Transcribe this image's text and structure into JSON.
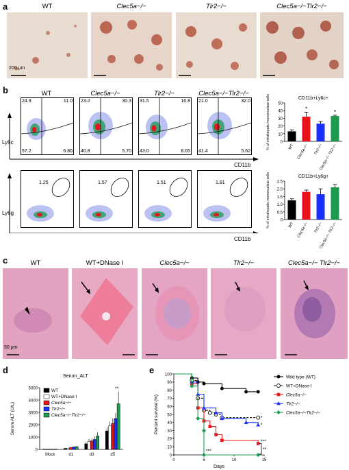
{
  "panels": {
    "a": {
      "label": "a",
      "titles": [
        "WT",
        "Clec5a−/−",
        "Tlr2−/−",
        "Clec5a−/−Tlr2−/−"
      ],
      "scale_bar": "200 μm"
    },
    "b": {
      "label": "b",
      "titles": [
        "WT",
        "Clec5a−/−",
        "Tlr2−/−",
        "Clec5a−/−Tlr2−/−"
      ],
      "row1_ylabel": "Ly6c",
      "row2_ylabel": "Ly6g",
      "xlabel": "CD11b",
      "row1_quadrants": [
        {
          "ul": "24.9",
          "ur": "11.0",
          "ll": "57.2",
          "lr": "6.86"
        },
        {
          "ul": "23.2",
          "ur": "30.3",
          "ll": "40.8",
          "lr": "5.70"
        },
        {
          "ul": "31.5",
          "ur": "16.8",
          "ll": "43.0",
          "lr": "8.65"
        },
        {
          "ul": "21.0",
          "ur": "32.0",
          "ll": "41.4",
          "lr": "5.62"
        }
      ],
      "row2_gates": [
        "1.25",
        "1.57",
        "1.51",
        "1.81"
      ]
    },
    "c": {
      "label": "c",
      "titles": [
        "WT",
        "WT+DNase I",
        "Clec5a−/−",
        "Tlr2−/−",
        "Clec5a−/− Tlr2−/−"
      ],
      "scale_bar": "50 μm"
    },
    "d": {
      "label": "d"
    },
    "e": {
      "label": "e"
    }
  },
  "chart_data": [
    {
      "type": "bar",
      "title": "CD11b+Ly6c+",
      "ylabel": "% of intrahepatic mononuclear cells",
      "categories": [
        "WT",
        "Clec5a−/−",
        "Tlr2−/−",
        "Clec5a−/− Tlr2−/−"
      ],
      "values": [
        13,
        32,
        23,
        33
      ],
      "errors": [
        2,
        6,
        3,
        1
      ],
      "significance": [
        "",
        "*",
        "",
        "*"
      ],
      "colors": [
        "#000000",
        "#e8141c",
        "#1a2fff",
        "#1d9a4d"
      ],
      "ylim": [
        0,
        50
      ],
      "yticks": [
        "0",
        "10",
        "20",
        "30",
        "40",
        "50"
      ]
    },
    {
      "type": "bar",
      "title": "CD11b+Ly6g+",
      "ylabel": "% of intrahepatic mononuclear cells",
      "categories": [
        "WT",
        "Clec5a−/−",
        "Tlr2−/−",
        "Clec5a−/− Tlr2−/−"
      ],
      "values": [
        1.25,
        1.8,
        1.65,
        2.1
      ],
      "errors": [
        0.1,
        0.12,
        0.35,
        0.18
      ],
      "colors": [
        "#000000",
        "#e8141c",
        "#1a2fff",
        "#1d9a4d"
      ],
      "ylim": [
        0,
        2.5
      ],
      "yticks": [
        "0",
        "0.5",
        "1.0",
        "1.5",
        "2.0",
        "2.5"
      ]
    },
    {
      "type": "bar",
      "title": "Serum_ALT",
      "ylabel": "Serum ALT (U/L)",
      "categories": [
        "Mock",
        "d1",
        "d3",
        "d5"
      ],
      "series": [
        {
          "name": "WT",
          "color": "#000000",
          "values": [
            30,
            80,
            450,
            1500
          ],
          "errors": [
            10,
            20,
            150,
            300
          ]
        },
        {
          "name": "WT+DNase I",
          "color": "#ffffff",
          "values": [
            30,
            100,
            650,
            1900
          ],
          "errors": [
            10,
            30,
            200,
            350
          ]
        },
        {
          "name": "Clec5a−/−",
          "color": "#e8141c",
          "values": [
            30,
            160,
            700,
            2100
          ],
          "errors": [
            10,
            40,
            200,
            400
          ]
        },
        {
          "name": "Tlr2−/−",
          "color": "#1a2fff",
          "values": [
            30,
            200,
            800,
            2500
          ],
          "errors": [
            10,
            50,
            250,
            450
          ]
        },
        {
          "name": "Clec5a−/−Tlr2−/−",
          "color": "#1d9a4d",
          "values": [
            30,
            220,
            1100,
            3700
          ],
          "errors": [
            10,
            60,
            300,
            1000
          ]
        }
      ],
      "significance": [
        "",
        "",
        "",
        "**"
      ],
      "ylim": [
        0,
        5000
      ],
      "yticks": [
        "0",
        "1000",
        "2000",
        "3000",
        "4000",
        "5000"
      ]
    },
    {
      "type": "line",
      "xlabel": "Days",
      "ylabel": "Percent survival (%)",
      "xlim": [
        0,
        15
      ],
      "ylim": [
        0,
        100
      ],
      "xticks": [
        "0",
        "5",
        "10",
        "15"
      ],
      "yticks": [
        "0",
        "10",
        "20",
        "30",
        "40",
        "50",
        "60",
        "70",
        "80",
        "90",
        "100"
      ],
      "series": [
        {
          "name": "Wild type (WT)",
          "color": "#000000",
          "marker": "filled-circle",
          "dash": false,
          "x": [
            0,
            3,
            4,
            5,
            8,
            12,
            14
          ],
          "y": [
            100,
            95,
            90,
            88,
            82,
            78,
            78
          ]
        },
        {
          "name": "WT+DNase-I",
          "color": "#000000",
          "marker": "open-circle",
          "dash": true,
          "x": [
            0,
            3,
            4,
            5,
            6,
            7,
            8,
            14
          ],
          "y": [
            100,
            92,
            70,
            55,
            52,
            50,
            46,
            46
          ]
        },
        {
          "name": "Clec5a−/−",
          "color": "#e8141c",
          "marker": "square",
          "dash": false,
          "x": [
            0,
            3,
            4,
            5,
            6,
            7,
            8,
            14
          ],
          "y": [
            100,
            88,
            58,
            42,
            35,
            25,
            18,
            14
          ]
        },
        {
          "name": "Tlr2−/−",
          "color": "#1a2fff",
          "marker": "triangle",
          "dash": false,
          "x": [
            0,
            3,
            4,
            5,
            7,
            8,
            12,
            14
          ],
          "y": [
            100,
            90,
            75,
            58,
            52,
            45,
            40,
            37
          ]
        },
        {
          "name": "Clec5a−/−Tlr2−/−",
          "color": "#1d9a4d",
          "marker": "diamond",
          "dash": false,
          "x": [
            0,
            3,
            4,
            5,
            5,
            14
          ],
          "y": [
            100,
            85,
            45,
            30,
            0,
            0
          ]
        }
      ],
      "annotations": [
        "***",
        "*",
        "*",
        "***",
        "**"
      ]
    }
  ]
}
